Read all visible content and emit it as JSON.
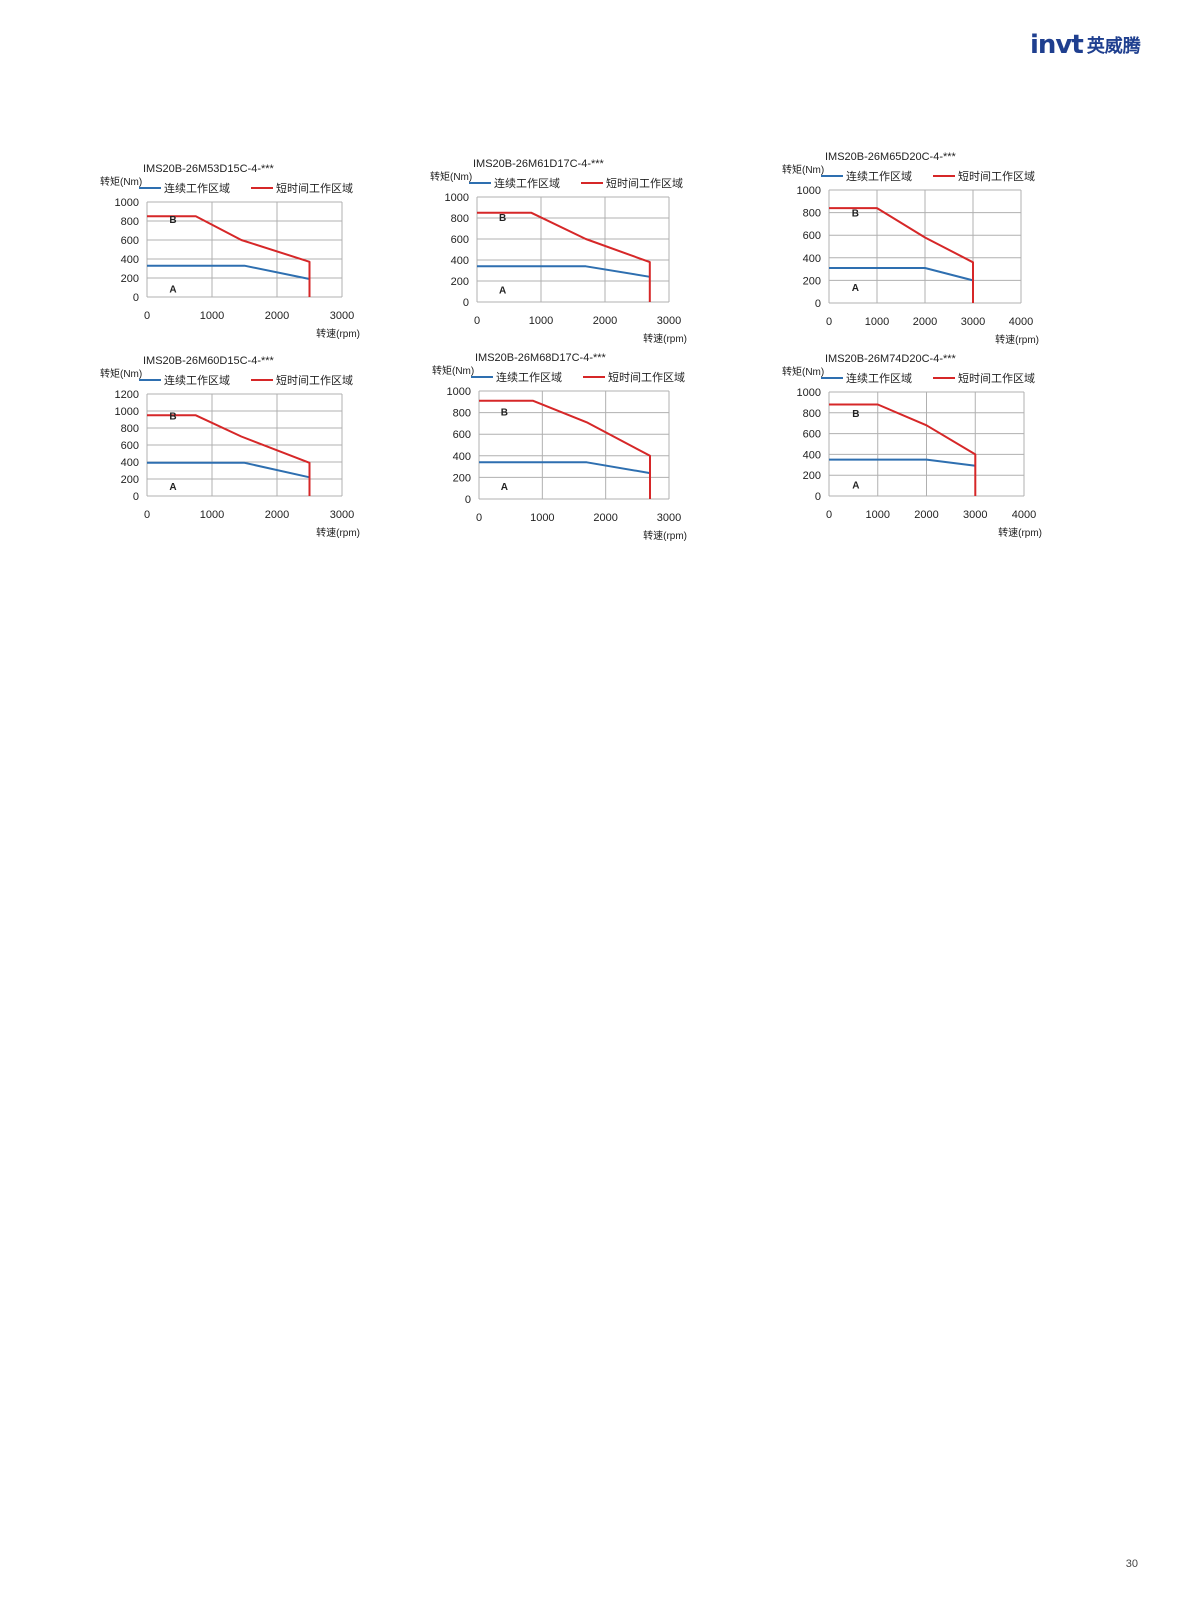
{
  "logo": {
    "brand": "invt",
    "cn": "英威腾"
  },
  "page_number": "30",
  "legend": {
    "continuous": "连续工作区域",
    "short": "短时间工作区域"
  },
  "colors": {
    "continuous": "#2e6fb0",
    "short": "#d62728",
    "grid": "#b0b0b0"
  },
  "axis": {
    "ylabel": "转矩(Nm)",
    "xlabel": "转速(rpm)"
  },
  "chart_data": [
    {
      "type": "line",
      "title": "IMS20B-26M53D15C-4-***",
      "xlabel": "转速(rpm)",
      "ylabel": "转矩(Nm)",
      "xlim": [
        0,
        3000
      ],
      "ylim": [
        0,
        1000
      ],
      "xticks": [
        0,
        1000,
        2000,
        3000
      ],
      "yticks": [
        0,
        200,
        400,
        600,
        800,
        1000
      ],
      "grid": true,
      "legend_position": "top",
      "region_labels": [
        {
          "text": "B",
          "x": 400,
          "y": 820
        },
        {
          "text": "A",
          "x": 400,
          "y": 90
        }
      ],
      "series": [
        {
          "name": "连续工作区域",
          "x": [
            0,
            1500,
            2500
          ],
          "y": [
            330,
            330,
            190
          ]
        },
        {
          "name": "短时间工作区域",
          "x": [
            0,
            750,
            1450,
            2500,
            2500
          ],
          "y": [
            850,
            850,
            600,
            370,
            0
          ]
        }
      ]
    },
    {
      "type": "line",
      "title": "IMS20B-26M61D17C-4-***",
      "xlabel": "转速(rpm)",
      "ylabel": "转矩(Nm)",
      "xlim": [
        0,
        3000
      ],
      "ylim": [
        0,
        1000
      ],
      "xticks": [
        0,
        1000,
        2000,
        3000
      ],
      "yticks": [
        0,
        200,
        400,
        600,
        800,
        1000
      ],
      "grid": true,
      "legend_position": "top",
      "region_labels": [
        {
          "text": "B",
          "x": 400,
          "y": 810
        },
        {
          "text": "A",
          "x": 400,
          "y": 120
        }
      ],
      "series": [
        {
          "name": "连续工作区域",
          "x": [
            0,
            1700,
            2700
          ],
          "y": [
            340,
            340,
            240
          ]
        },
        {
          "name": "短时间工作区域",
          "x": [
            0,
            850,
            1700,
            2700,
            2700
          ],
          "y": [
            850,
            850,
            600,
            380,
            0
          ]
        }
      ]
    },
    {
      "type": "line",
      "title": "IMS20B-26M65D20C-4-***",
      "xlabel": "转速(rpm)",
      "ylabel": "转矩(Nm)",
      "xlim": [
        0,
        4000
      ],
      "ylim": [
        0,
        1000
      ],
      "xticks": [
        0,
        1000,
        2000,
        3000,
        4000
      ],
      "yticks": [
        0,
        200,
        400,
        600,
        800,
        1000
      ],
      "grid": true,
      "legend_position": "top",
      "region_labels": [
        {
          "text": "B",
          "x": 550,
          "y": 800
        },
        {
          "text": "A",
          "x": 550,
          "y": 140
        }
      ],
      "series": [
        {
          "name": "连续工作区域",
          "x": [
            0,
            2000,
            3000
          ],
          "y": [
            310,
            310,
            200
          ]
        },
        {
          "name": "短时间工作区域",
          "x": [
            0,
            1000,
            2000,
            3000,
            3000
          ],
          "y": [
            840,
            840,
            580,
            360,
            0
          ]
        }
      ]
    },
    {
      "type": "line",
      "title": "IMS20B-26M60D15C-4-***",
      "xlabel": "转速(rpm)",
      "ylabel": "转矩(Nm)",
      "xlim": [
        0,
        3000
      ],
      "ylim": [
        0,
        1200
      ],
      "xticks": [
        0,
        1000,
        2000,
        3000
      ],
      "yticks": [
        0,
        200,
        400,
        600,
        800,
        1000,
        1200
      ],
      "grid": true,
      "legend_position": "top",
      "region_labels": [
        {
          "text": "B",
          "x": 400,
          "y": 950
        },
        {
          "text": "A",
          "x": 400,
          "y": 120
        }
      ],
      "series": [
        {
          "name": "连续工作区域",
          "x": [
            0,
            1500,
            2500
          ],
          "y": [
            390,
            390,
            220
          ]
        },
        {
          "name": "短时间工作区域",
          "x": [
            0,
            750,
            1450,
            2500,
            2500
          ],
          "y": [
            950,
            950,
            700,
            390,
            0
          ]
        }
      ]
    },
    {
      "type": "line",
      "title": "IMS20B-26M68D17C-4-***",
      "xlabel": "转速(rpm)",
      "ylabel": "转矩(Nm)",
      "xlim": [
        0,
        3000
      ],
      "ylim": [
        0,
        1000
      ],
      "xticks": [
        0,
        1000,
        2000,
        3000
      ],
      "yticks": [
        0,
        200,
        400,
        600,
        800,
        1000
      ],
      "grid": true,
      "legend_position": "top",
      "region_labels": [
        {
          "text": "B",
          "x": 400,
          "y": 810
        },
        {
          "text": "A",
          "x": 400,
          "y": 120
        }
      ],
      "series": [
        {
          "name": "连续工作区域",
          "x": [
            0,
            1700,
            2700
          ],
          "y": [
            340,
            340,
            240
          ]
        },
        {
          "name": "短时间工作区域",
          "x": [
            0,
            850,
            1700,
            2700,
            2700
          ],
          "y": [
            910,
            910,
            710,
            400,
            0
          ]
        }
      ]
    },
    {
      "type": "line",
      "title": "IMS20B-26M74D20C-4-***",
      "xlabel": "转速(rpm)",
      "ylabel": "转矩(Nm)",
      "xlim": [
        0,
        4000
      ],
      "ylim": [
        0,
        1000
      ],
      "xticks": [
        0,
        1000,
        2000,
        3000,
        4000
      ],
      "yticks": [
        0,
        200,
        400,
        600,
        800,
        1000
      ],
      "grid": true,
      "legend_position": "top",
      "region_labels": [
        {
          "text": "B",
          "x": 550,
          "y": 800
        },
        {
          "text": "A",
          "x": 550,
          "y": 110
        }
      ],
      "series": [
        {
          "name": "连续工作区域",
          "x": [
            0,
            2000,
            3000
          ],
          "y": [
            350,
            350,
            290
          ]
        },
        {
          "name": "短时间工作区域",
          "x": [
            0,
            1000,
            2000,
            3000,
            3000
          ],
          "y": [
            880,
            880,
            680,
            400,
            0
          ]
        }
      ]
    }
  ]
}
